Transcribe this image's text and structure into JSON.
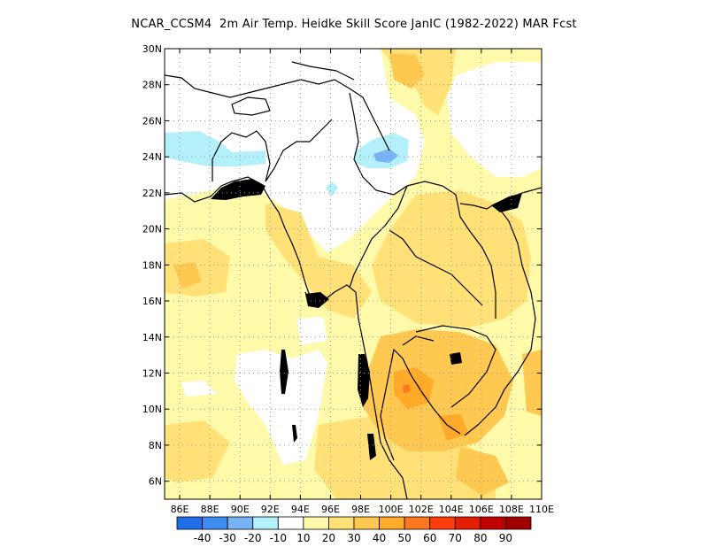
{
  "title": "NCAR_CCSM4  2m Air Temp. Heidke Skill Score JanIC (1982-2022) MAR Fcst",
  "lat_labels": [
    "30N",
    "28N",
    "26N",
    "24N",
    "22N",
    "20N",
    "18N",
    "16N",
    "14N",
    "12N",
    "10N",
    "8N",
    "6N"
  ],
  "lon_labels": [
    "86E",
    "88E",
    "90E",
    "92E",
    "94E",
    "96E",
    "98E",
    "100E",
    "102E",
    "104E",
    "106E",
    "108E",
    "110E"
  ],
  "colorbar": {
    "colors": [
      "#1e6ee6",
      "#3c8cf0",
      "#78b4f5",
      "#b4f0fa",
      "#ffffff",
      "#fffaaa",
      "#ffe178",
      "#ffc850",
      "#ffaa28",
      "#ff781e",
      "#ff3c0a",
      "#e61e00",
      "#c00000",
      "#a00000"
    ],
    "labels": [
      "-40",
      "-30",
      "-20",
      "-10",
      "10",
      "20",
      "30",
      "40",
      "50",
      "60",
      "70",
      "80",
      "90"
    ]
  },
  "map_extent": {
    "lon": [
      85,
      110
    ],
    "lat": [
      5,
      30
    ]
  },
  "field_colors": {
    "pale_yellow": "#fffaaa",
    "light_orange": "#ffe178",
    "orange": "#ffc850",
    "dark_orange": "#ffaa28",
    "red_orange": "#ff781e",
    "light_blue": "#b4f0fa",
    "blue": "#78b4f5",
    "land_outline": "#000000"
  }
}
